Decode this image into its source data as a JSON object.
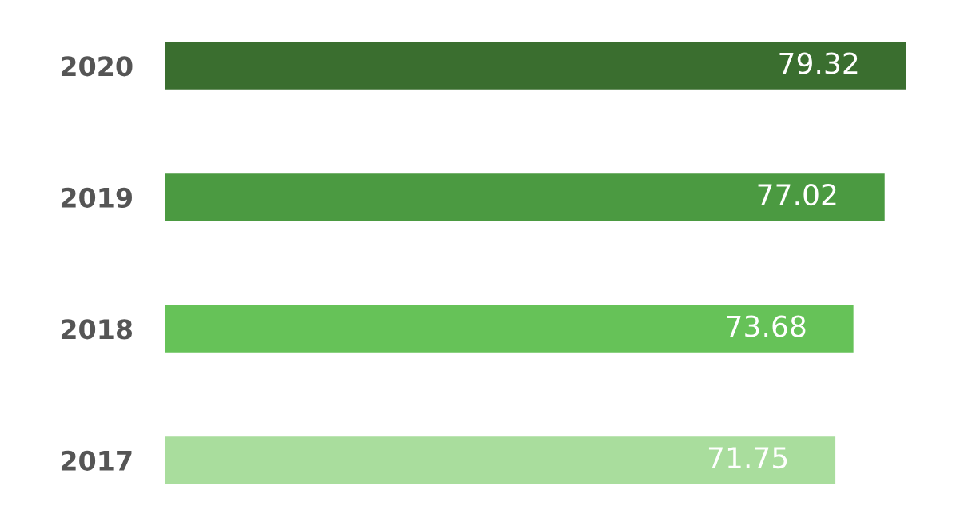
{
  "chart_data": {
    "type": "bar",
    "orientation": "horizontal",
    "categories": [
      "2020",
      "2019",
      "2018",
      "2017"
    ],
    "values": [
      79.32,
      77.02,
      73.68,
      71.75
    ],
    "colors": [
      "#3a6e2f",
      "#4b9a41",
      "#66c258",
      "#a9dd9d"
    ],
    "tick_labels": "y",
    "data_labels": true,
    "grid": false
  }
}
